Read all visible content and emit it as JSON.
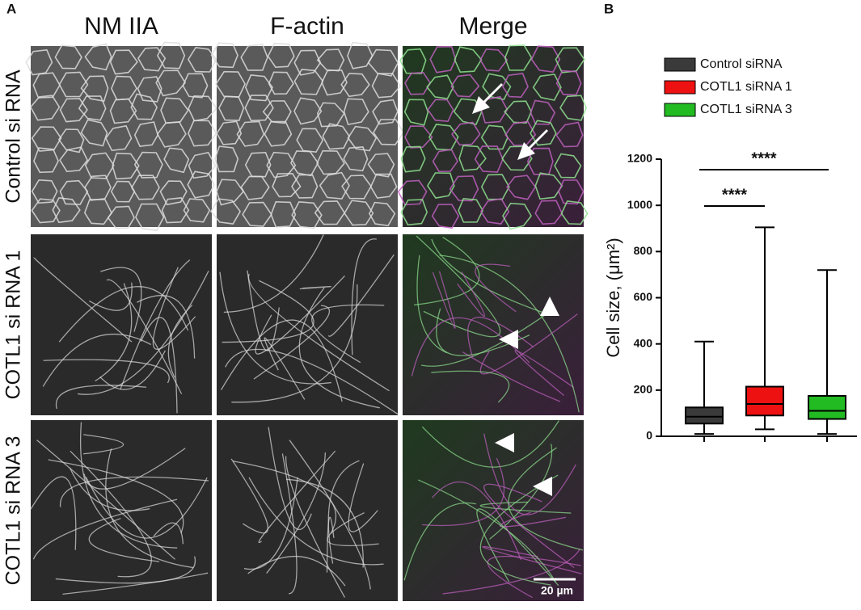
{
  "panel_a": {
    "label": "A",
    "columns": [
      "NM IIA",
      "F-actin",
      "Merge"
    ],
    "rows": [
      "Control si RNA",
      "COTL1 si RNA 1",
      "COTL1 si RNA 3"
    ],
    "scale_bar": "20 µm"
  },
  "panel_b": {
    "label": "B"
  },
  "chart_data": {
    "type": "box",
    "y_label": "Cell size, (μm²)",
    "series": [
      {
        "name": "Control siRNA",
        "color": "#3a3a3a",
        "min": 10,
        "q1": 55,
        "median": 85,
        "q3": 125,
        "max": 410
      },
      {
        "name": "COTL1 siRNA 1",
        "color": "#ee1111",
        "min": 30,
        "q1": 90,
        "median": 140,
        "q3": 215,
        "max": 905
      },
      {
        "name": "COTL1 siRNA 3",
        "color": "#22bb22",
        "min": 10,
        "q1": 75,
        "median": 110,
        "q3": 175,
        "max": 720
      }
    ],
    "annotations": [
      "****",
      "****"
    ],
    "ylim": [
      0,
      1200
    ],
    "yticks": [
      0,
      200,
      400,
      600,
      800,
      1000,
      1200
    ]
  }
}
